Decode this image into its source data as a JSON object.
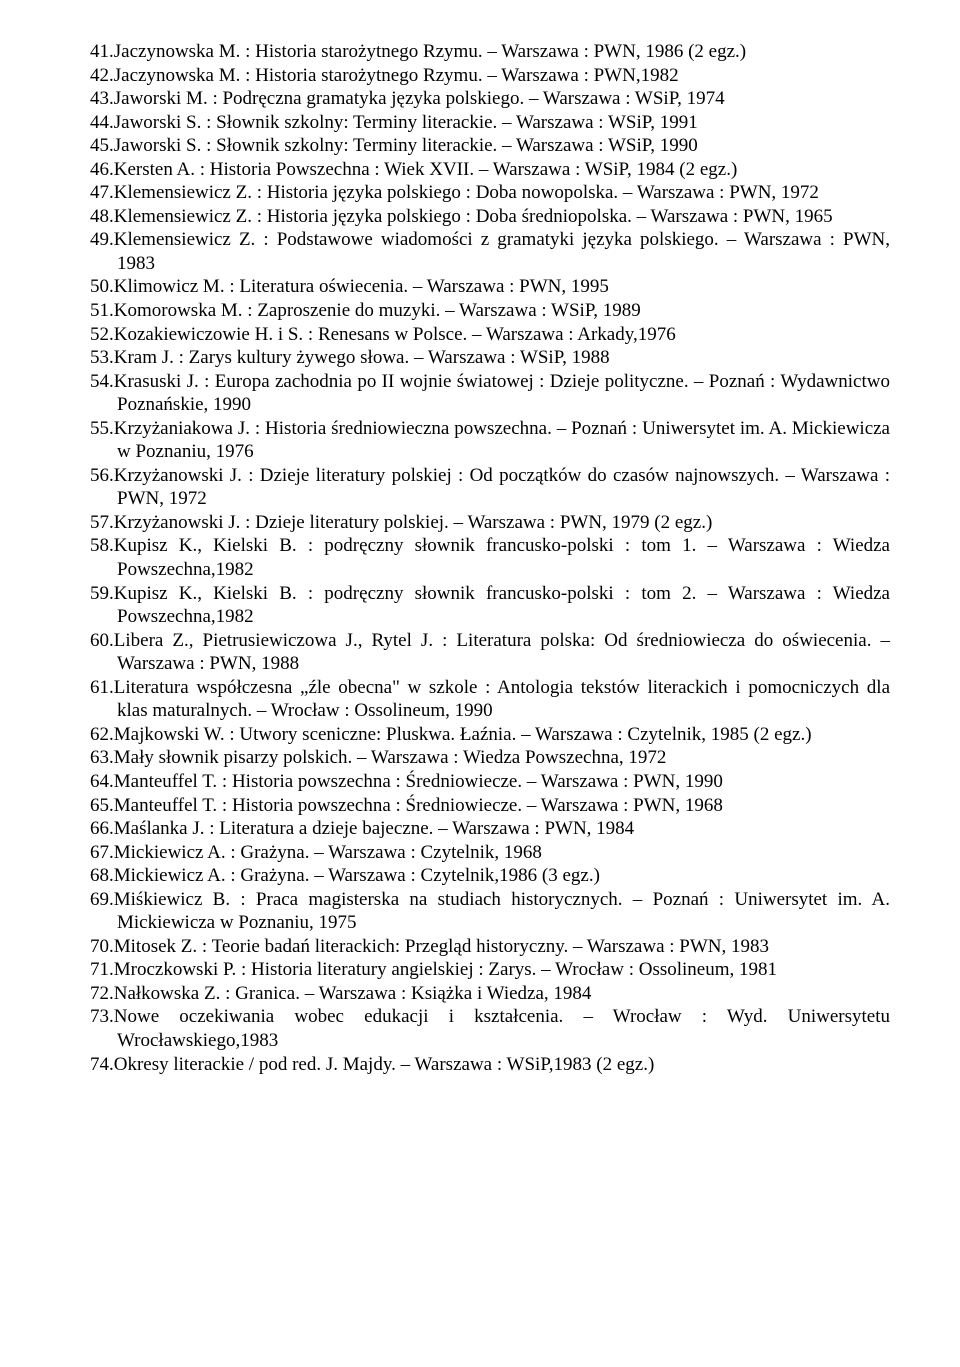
{
  "font": {
    "family": "Times New Roman",
    "size_pt": 14,
    "color": "#000000",
    "background": "#ffffff"
  },
  "entries": [
    {
      "n": 41,
      "text": "Jaczynowska M. : Historia starożytnego Rzymu. – Warszawa : PWN, 1986 (2 egz.)"
    },
    {
      "n": 42,
      "text": "Jaczynowska M. : Historia starożytnego Rzymu. – Warszawa : PWN,1982"
    },
    {
      "n": 43,
      "text": "Jaworski M. : Podręczna gramatyka języka polskiego. – Warszawa : WSiP, 1974"
    },
    {
      "n": 44,
      "text": "Jaworski S. : Słownik szkolny: Terminy literackie. – Warszawa : WSiP, 1991"
    },
    {
      "n": 45,
      "text": "Jaworski S. : Słownik szkolny: Terminy literackie. – Warszawa : WSiP, 1990"
    },
    {
      "n": 46,
      "text": "Kersten A. : Historia Powszechna : Wiek XVII. – Warszawa : WSiP, 1984 (2 egz.)"
    },
    {
      "n": 47,
      "text": "Klemensiewicz Z. : Historia języka polskiego : Doba nowopolska. – Warszawa : PWN, 1972"
    },
    {
      "n": 48,
      "text": "Klemensiewicz Z. : Historia języka polskiego : Doba średniopolska. – Warszawa : PWN, 1965"
    },
    {
      "n": 49,
      "text": "Klemensiewicz Z. : Podstawowe wiadomości z gramatyki języka polskiego. – Warszawa : PWN, 1983"
    },
    {
      "n": 50,
      "text": "Klimowicz M. : Literatura oświecenia. – Warszawa : PWN, 1995"
    },
    {
      "n": 51,
      "text": "Komorowska M. : Zaproszenie do muzyki. – Warszawa : WSiP, 1989"
    },
    {
      "n": 52,
      "text": "Kozakiewiczowie H. i S. : Renesans w Polsce. – Warszawa : Arkady,1976"
    },
    {
      "n": 53,
      "text": "Kram J. : Zarys kultury żywego słowa. – Warszawa : WSiP, 1988"
    },
    {
      "n": 54,
      "text": "Krasuski J. : Europa zachodnia po II wojnie światowej : Dzieje polityczne. – Poznań : Wydawnictwo Poznańskie, 1990"
    },
    {
      "n": 55,
      "text": "Krzyżaniakowa J. : Historia średniowieczna powszechna. – Poznań : Uniwersytet im. A. Mickiewicza w Poznaniu, 1976"
    },
    {
      "n": 56,
      "text": "Krzyżanowski J. : Dzieje literatury polskiej : Od początków do czasów najnowszych. – Warszawa : PWN, 1972"
    },
    {
      "n": 57,
      "text": "Krzyżanowski J. : Dzieje literatury polskiej. – Warszawa : PWN, 1979 (2 egz.)"
    },
    {
      "n": 58,
      "text": "Kupisz K., Kielski B. : podręczny słownik francusko-polski : tom 1. – Warszawa : Wiedza Powszechna,1982"
    },
    {
      "n": 59,
      "text": "Kupisz K., Kielski B. : podręczny słownik francusko-polski : tom 2. – Warszawa : Wiedza Powszechna,1982"
    },
    {
      "n": 60,
      "text": "Libera Z., Pietrusiewiczowa J., Rytel J. : Literatura polska: Od średniowiecza do oświecenia. – Warszawa : PWN, 1988"
    },
    {
      "n": 61,
      "text": "Literatura współczesna „źle obecna\" w szkole : Antologia tekstów literackich i pomocniczych dla klas maturalnych. – Wrocław : Ossolineum, 1990"
    },
    {
      "n": 62,
      "text": "Majkowski W. : Utwory sceniczne: Pluskwa. Łaźnia. – Warszawa : Czytelnik, 1985 (2 egz.)"
    },
    {
      "n": 63,
      "text": "Mały słownik pisarzy polskich. – Warszawa : Wiedza Powszechna, 1972"
    },
    {
      "n": 64,
      "text": "Manteuffel T. : Historia powszechna : Średniowiecze. – Warszawa : PWN, 1990"
    },
    {
      "n": 65,
      "text": "Manteuffel T. : Historia powszechna : Średniowiecze. – Warszawa : PWN, 1968"
    },
    {
      "n": 66,
      "text": "Maślanka J. : Literatura a dzieje bajeczne. – Warszawa : PWN, 1984"
    },
    {
      "n": 67,
      "text": "Mickiewicz A. : Grażyna. – Warszawa : Czytelnik, 1968"
    },
    {
      "n": 68,
      "text": "Mickiewicz A. : Grażyna. – Warszawa : Czytelnik,1986 (3 egz.)"
    },
    {
      "n": 69,
      "text": "Miśkiewicz B. : Praca magisterska na studiach historycznych. – Poznań : Uniwersytet im. A. Mickiewicza w Poznaniu, 1975"
    },
    {
      "n": 70,
      "text": "Mitosek Z. : Teorie badań literackich: Przegląd historyczny. – Warszawa : PWN, 1983"
    },
    {
      "n": 71,
      "text": "Mroczkowski P. : Historia literatury angielskiej : Zarys. – Wrocław : Ossolineum, 1981"
    },
    {
      "n": 72,
      "text": "Nałkowska Z. : Granica. – Warszawa : Książka i Wiedza, 1984"
    },
    {
      "n": 73,
      "text": "Nowe oczekiwania wobec edukacji i kształcenia. – Wrocław : Wyd. Uniwersytetu Wrocławskiego,1983"
    },
    {
      "n": 74,
      "text": "Okresy literackie / pod red. J. Majdy. – Warszawa : WSiP,1983 (2 egz.)"
    }
  ]
}
